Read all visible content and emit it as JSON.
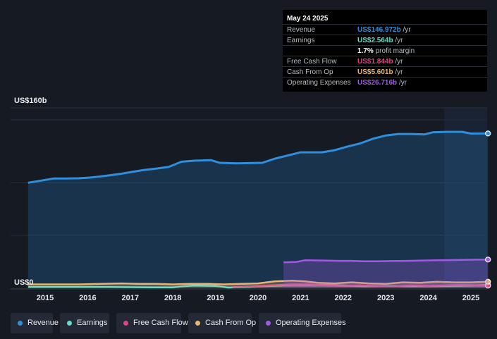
{
  "chart_data": {
    "type": "area",
    "y_top_label": "US$160b",
    "y_bottom_label": "US$0",
    "ylim": [
      0,
      160
    ],
    "x_ticks": [
      "2015",
      "2016",
      "2017",
      "2018",
      "2019",
      "2020",
      "2021",
      "2022",
      "2023",
      "2024",
      "2025"
    ],
    "series": [
      {
        "name": "Revenue",
        "color": "#2f8fdd",
        "points": [
          [
            2014.6,
            100
          ],
          [
            2014.9,
            102
          ],
          [
            2015.2,
            104
          ],
          [
            2015.5,
            104
          ],
          [
            2015.8,
            104.3
          ],
          [
            2016.1,
            105
          ],
          [
            2016.4,
            106.5
          ],
          [
            2016.7,
            108
          ],
          [
            2017.0,
            110
          ],
          [
            2017.3,
            112
          ],
          [
            2017.6,
            113.5
          ],
          [
            2017.9,
            115
          ],
          [
            2018.2,
            120
          ],
          [
            2018.5,
            121
          ],
          [
            2018.9,
            121.5
          ],
          [
            2019.1,
            119
          ],
          [
            2019.5,
            118.5
          ],
          [
            2019.8,
            118.7
          ],
          [
            2020.1,
            119
          ],
          [
            2020.4,
            123
          ],
          [
            2020.7,
            126
          ],
          [
            2021.0,
            129
          ],
          [
            2021.3,
            129
          ],
          [
            2021.5,
            129
          ],
          [
            2021.8,
            131
          ],
          [
            2022.1,
            134.5
          ],
          [
            2022.4,
            137.5
          ],
          [
            2022.7,
            142
          ],
          [
            2023.0,
            145
          ],
          [
            2023.3,
            146.5
          ],
          [
            2023.6,
            146.5
          ],
          [
            2023.9,
            146
          ],
          [
            2024.1,
            148
          ],
          [
            2024.4,
            148.5
          ],
          [
            2024.8,
            148.5
          ],
          [
            2025.0,
            146.9
          ],
          [
            2025.4,
            146.97
          ]
        ]
      },
      {
        "name": "Earnings",
        "color": "#5ee0cc",
        "points": [
          [
            2014.6,
            0.5
          ],
          [
            2015.5,
            0.5
          ],
          [
            2016.5,
            0.5
          ],
          [
            2017.5,
            0.2
          ],
          [
            2018.0,
            0.2
          ],
          [
            2018.5,
            2
          ],
          [
            2019.0,
            1.5
          ],
          [
            2019.3,
            0
          ],
          [
            2019.8,
            0.5
          ],
          [
            2020.3,
            1.5
          ],
          [
            2020.8,
            2.5
          ],
          [
            2021.5,
            2.5
          ],
          [
            2022.0,
            2
          ],
          [
            2022.5,
            1
          ],
          [
            2023.0,
            1.5
          ],
          [
            2023.5,
            1
          ],
          [
            2024.0,
            1
          ],
          [
            2024.5,
            1.5
          ],
          [
            2025.0,
            2
          ],
          [
            2025.4,
            2.564
          ]
        ]
      },
      {
        "name": "Free Cash Flow",
        "color": "#e0428a",
        "points": [
          [
            2019.4,
            0.5
          ],
          [
            2019.8,
            1
          ],
          [
            2020.3,
            2
          ],
          [
            2020.8,
            3
          ],
          [
            2021.2,
            3
          ],
          [
            2021.6,
            2
          ],
          [
            2022.0,
            1.5
          ],
          [
            2022.4,
            2
          ],
          [
            2022.8,
            1.5
          ],
          [
            2023.2,
            1
          ],
          [
            2023.6,
            2
          ],
          [
            2024.0,
            1.5
          ],
          [
            2024.4,
            2
          ],
          [
            2024.8,
            2.5
          ],
          [
            2025.4,
            1.844
          ]
        ]
      },
      {
        "name": "Cash From Op",
        "color": "#e8b472",
        "points": [
          [
            2014.6,
            3
          ],
          [
            2015.2,
            3
          ],
          [
            2015.8,
            3
          ],
          [
            2016.3,
            3.5
          ],
          [
            2016.8,
            4
          ],
          [
            2017.2,
            3.5
          ],
          [
            2017.6,
            3.5
          ],
          [
            2018.0,
            3
          ],
          [
            2018.4,
            3.5
          ],
          [
            2018.8,
            3.5
          ],
          [
            2019.2,
            3
          ],
          [
            2019.6,
            3.5
          ],
          [
            2020.0,
            4
          ],
          [
            2020.4,
            6
          ],
          [
            2020.8,
            6.5
          ],
          [
            2021.1,
            6
          ],
          [
            2021.4,
            4.5
          ],
          [
            2021.8,
            4
          ],
          [
            2022.2,
            5
          ],
          [
            2022.6,
            4
          ],
          [
            2023.0,
            3.5
          ],
          [
            2023.4,
            5
          ],
          [
            2023.8,
            4.5
          ],
          [
            2024.2,
            5.5
          ],
          [
            2024.6,
            5
          ],
          [
            2025.0,
            5
          ],
          [
            2025.4,
            5.601
          ]
        ]
      },
      {
        "name": "Operating Expenses",
        "color": "#a259e6",
        "points": [
          [
            2020.6,
            24
          ],
          [
            2020.9,
            24.5
          ],
          [
            2021.1,
            26
          ],
          [
            2021.5,
            25.8
          ],
          [
            2021.9,
            25.5
          ],
          [
            2022.2,
            25.5
          ],
          [
            2022.5,
            25
          ],
          [
            2022.8,
            25
          ],
          [
            2023.1,
            25.3
          ],
          [
            2023.5,
            25.5
          ],
          [
            2023.9,
            25.8
          ],
          [
            2024.2,
            26
          ],
          [
            2024.6,
            26.2
          ],
          [
            2024.9,
            26.5
          ],
          [
            2025.4,
            26.716
          ]
        ]
      }
    ]
  },
  "tooltip": {
    "date": "May 24 2025",
    "rows": [
      {
        "label": "Revenue",
        "value": "US$146.972b",
        "unit": "/yr",
        "color": "#2f8fdd"
      },
      {
        "label": "Earnings",
        "value": "US$2.564b",
        "unit": "/yr",
        "color": "#5ee0cc"
      },
      {
        "label": "",
        "value": "1.7%",
        "unit": "profit margin",
        "color": "#ffffff"
      },
      {
        "label": "Free Cash Flow",
        "value": "US$1.844b",
        "unit": "/yr",
        "color": "#e0428a"
      },
      {
        "label": "Cash From Op",
        "value": "US$5.601b",
        "unit": "/yr",
        "color": "#e8b472"
      },
      {
        "label": "Operating Expenses",
        "value": "US$26.716b",
        "unit": "/yr",
        "color": "#a259e6"
      }
    ]
  },
  "legend": [
    {
      "label": "Revenue",
      "color": "#2f8fdd"
    },
    {
      "label": "Earnings",
      "color": "#5ee0cc"
    },
    {
      "label": "Free Cash Flow",
      "color": "#e0428a"
    },
    {
      "label": "Cash From Op",
      "color": "#e8b472"
    },
    {
      "label": "Operating Expenses",
      "color": "#a259e6"
    }
  ]
}
